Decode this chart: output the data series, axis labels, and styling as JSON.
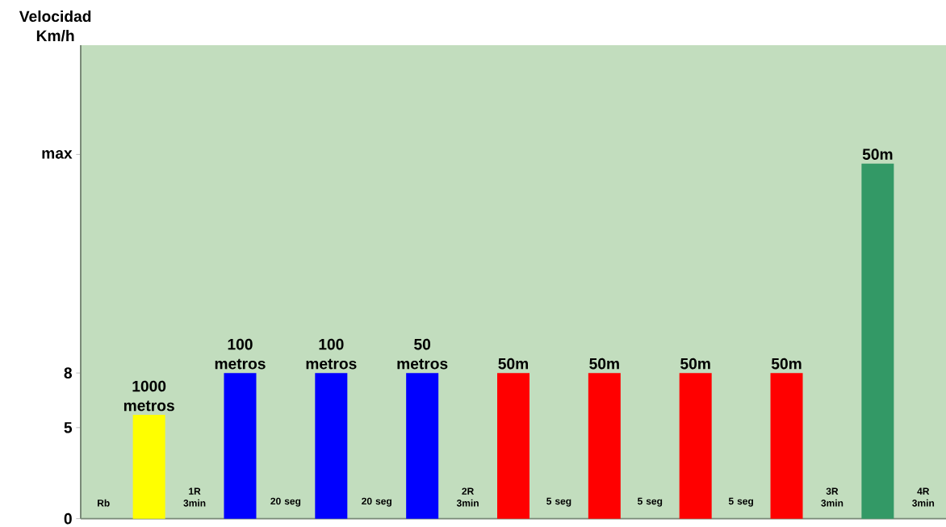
{
  "chart_data": {
    "type": "bar",
    "ylabel": "Velocidad Km/h",
    "categories": [
      "Rb",
      null,
      "1R 3min",
      null,
      "20 seg",
      null,
      "20 seg",
      null,
      "2R 3min",
      null,
      "5 seg",
      null,
      "5 seg",
      null,
      "5 seg",
      null,
      "3R 3min",
      null,
      "4R 3min"
    ],
    "values": [
      null,
      5.7,
      null,
      8,
      null,
      8,
      null,
      8,
      null,
      8,
      null,
      8,
      null,
      8,
      null,
      8,
      null,
      19.5,
      null
    ],
    "colors": [
      null,
      "#ffff00",
      null,
      "#0000ff",
      null,
      "#0000ff",
      null,
      "#0000ff",
      null,
      "#ff0000",
      null,
      "#ff0000",
      null,
      "#ff0000",
      null,
      "#ff0000",
      null,
      "#339966",
      null
    ],
    "annotations": [
      "1000 metros",
      "100 metros",
      "100 metros",
      "50 metros",
      "50m",
      "50m",
      "50m",
      "50m",
      "50m"
    ],
    "ylim": [
      0,
      26
    ],
    "yticks": [
      0,
      5,
      8,
      {
        "value": 20,
        "label": "max"
      }
    ],
    "grid": false
  }
}
